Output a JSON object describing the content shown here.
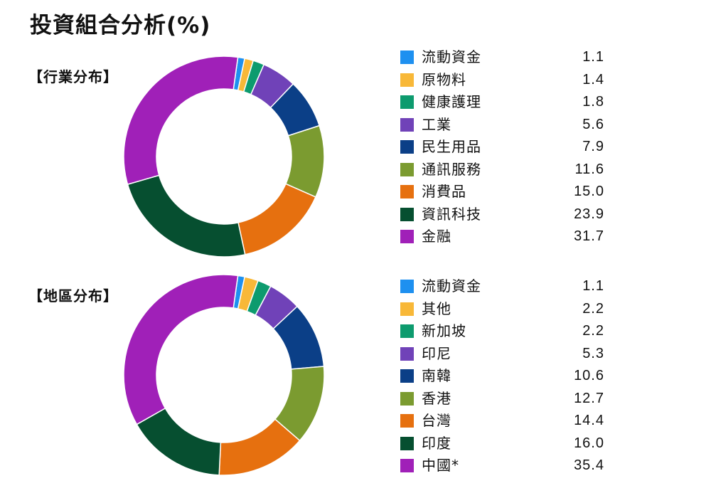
{
  "title": "投資組合分析(%)",
  "chart_data": [
    {
      "type": "pie",
      "heading": "【行業分布】",
      "categories": [
        "流動資金",
        "原物料",
        "健康護理",
        "工業",
        "民生用品",
        "通訊服務",
        "消費品",
        "資訊科技",
        "金融"
      ],
      "values": [
        1.1,
        1.4,
        1.8,
        5.6,
        7.9,
        11.6,
        15.0,
        23.9,
        31.7
      ],
      "value_labels": [
        "1.1",
        "1.4",
        "1.8",
        "5.6",
        "7.9",
        "11.6",
        "15.0",
        "23.9",
        "31.7"
      ],
      "colors": [
        "#1e90f0",
        "#f8b838",
        "#0d9b6e",
        "#7042b8",
        "#0b3f87",
        "#7b9b30",
        "#e6700f",
        "#064f30",
        "#a020b8"
      ]
    },
    {
      "type": "pie",
      "heading": "【地區分布】",
      "categories": [
        "流動資金",
        "其他",
        "新加坡",
        "印尼",
        "南韓",
        "香港",
        "台灣",
        "印度",
        "中國*"
      ],
      "values": [
        1.1,
        2.2,
        2.2,
        5.3,
        10.6,
        12.7,
        14.4,
        16.0,
        35.4
      ],
      "value_labels": [
        "1.1",
        "2.2",
        "2.2",
        "5.3",
        "10.6",
        "12.7",
        "14.4",
        "16.0",
        "35.4"
      ],
      "colors": [
        "#1e90f0",
        "#f8b838",
        "#0d9b6e",
        "#7042b8",
        "#0b3f87",
        "#7b9b30",
        "#e6700f",
        "#064f30",
        "#a020b8"
      ]
    }
  ]
}
